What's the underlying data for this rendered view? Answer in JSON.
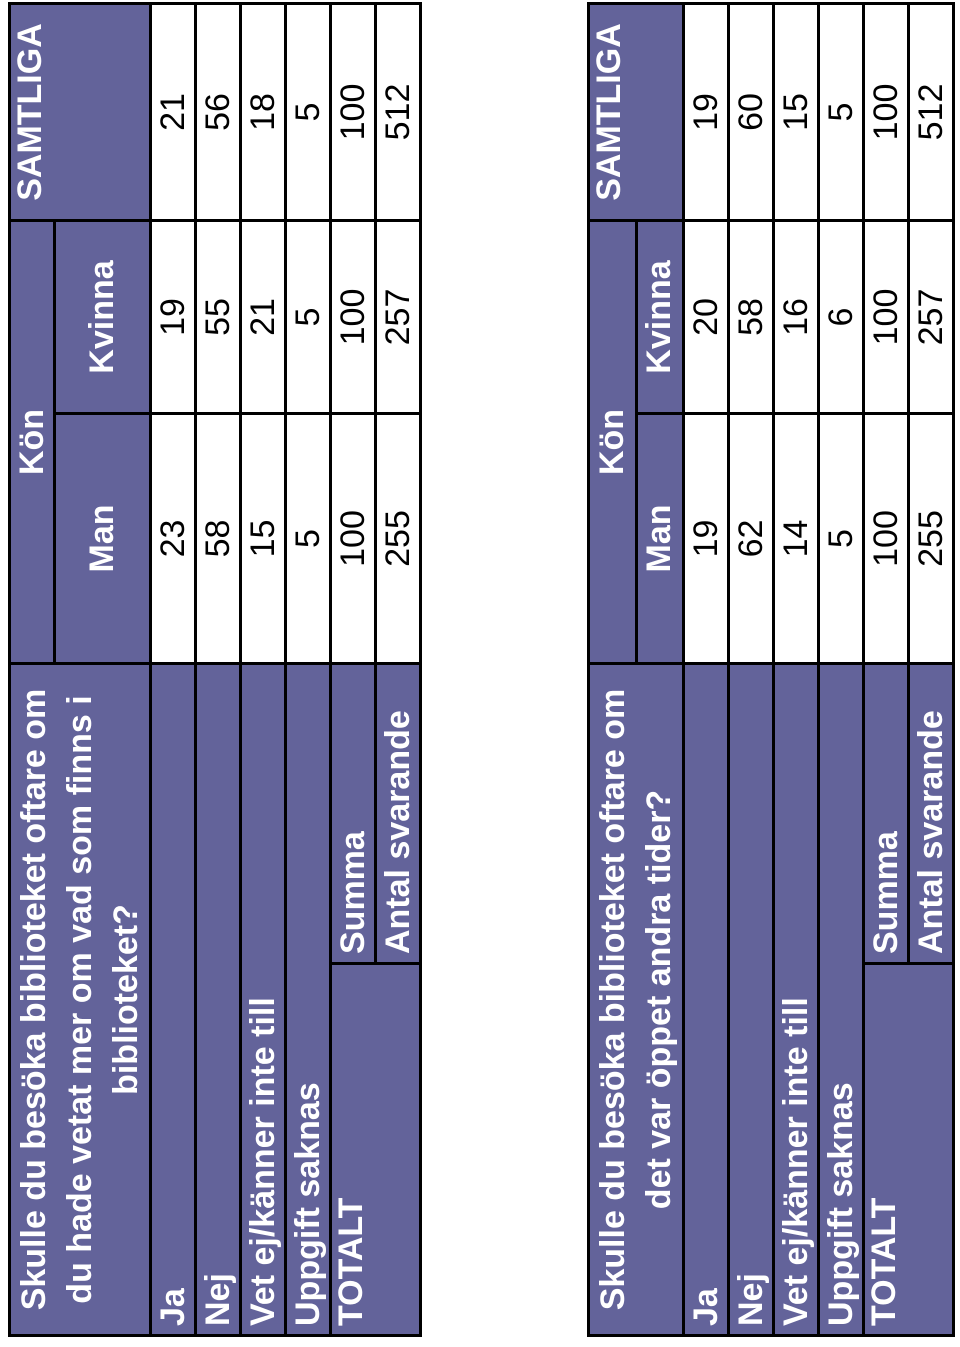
{
  "tables": [
    {
      "title": "Skulle du besöka biblioteket oftare om du hade vetat mer om vad som finns i biblioteket?",
      "group_header": "Kön",
      "columns": [
        "Man",
        "Kvinna"
      ],
      "total_header": "SAMTLIGA",
      "rows": [
        {
          "label": "Ja",
          "values": [
            "23",
            "19",
            "21"
          ]
        },
        {
          "label": "Nej",
          "values": [
            "58",
            "55",
            "56"
          ]
        },
        {
          "label": "Vet ej/känner inte till",
          "values": [
            "15",
            "21",
            "18"
          ]
        },
        {
          "label": "Uppgift saknas",
          "values": [
            "5",
            "5",
            "5"
          ]
        }
      ],
      "total": {
        "label": "TOTALT",
        "rows": [
          {
            "label": "Summa",
            "values": [
              "100",
              "100",
              "100"
            ]
          },
          {
            "label": "Antal svarande",
            "values": [
              "255",
              "257",
              "512"
            ]
          }
        ]
      }
    },
    {
      "title": "Skulle du besöka biblioteket oftare om det var öppet andra tider?",
      "group_header": "Kön",
      "columns": [
        "Man",
        "Kvinna"
      ],
      "total_header": "SAMTLIGA",
      "rows": [
        {
          "label": "Ja",
          "values": [
            "19",
            "20",
            "19"
          ]
        },
        {
          "label": "Nej",
          "values": [
            "62",
            "58",
            "60"
          ]
        },
        {
          "label": "Vet ej/känner inte till",
          "values": [
            "14",
            "16",
            "15"
          ]
        },
        {
          "label": "Uppgift saknas",
          "values": [
            "5",
            "6",
            "5"
          ]
        }
      ],
      "total": {
        "label": "TOTALT",
        "rows": [
          {
            "label": "Summa",
            "values": [
              "100",
              "100",
              "100"
            ]
          },
          {
            "label": "Antal svarande",
            "values": [
              "255",
              "257",
              "512"
            ]
          }
        ]
      }
    }
  ]
}
